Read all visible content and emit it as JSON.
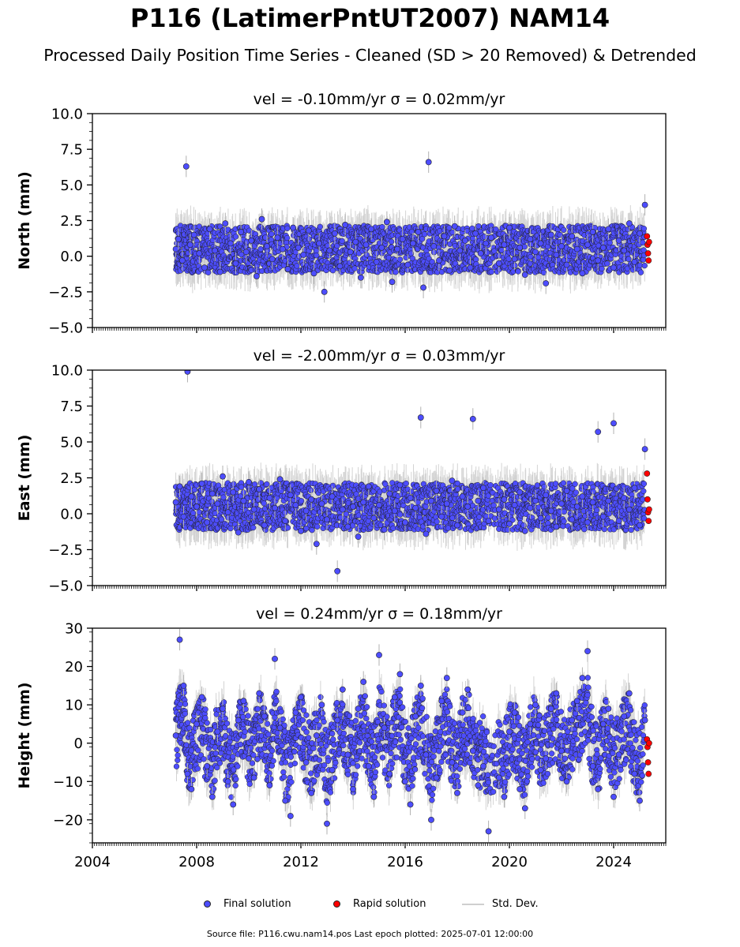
{
  "title": "P116 (LatimerPntUT2007) NAM14",
  "subtitle": "Processed Daily Position Time Series - Cleaned (SD > 20 Removed) & Detrended",
  "legend": {
    "final": "Final solution",
    "rapid": "Rapid solution",
    "stddev": "Std. Dev."
  },
  "footer": "Source file: P116.cwu.nam14.pos  Last epoch plotted: 2025-07-01 12:00:00",
  "colors": {
    "final": "#4d4dff",
    "rapid": "#ff0000",
    "stddev": "#b0b0b0",
    "marker_edge": "#222222"
  },
  "chart_data": [
    {
      "type": "scatter",
      "title": "vel = -0.10mm/yr   σ = 0.02mm/yr",
      "ylabel": "North (mm)",
      "xlim": [
        2004,
        2026
      ],
      "ylim": [
        -5,
        10
      ],
      "yticks": [
        -5.0,
        -2.5,
        0.0,
        2.5,
        5.0,
        7.5,
        10.0
      ],
      "ytick_labels": [
        "−5.0",
        "−2.5",
        "0.0",
        "2.5",
        "5.0",
        "7.5",
        "10.0"
      ],
      "xticks": [
        2004,
        2008,
        2012,
        2016,
        2020,
        2024
      ],
      "xtick_labels": [
        "",
        "",
        "",
        "",
        "",
        ""
      ],
      "series": [
        {
          "name": "Final solution",
          "x": [
            2007.2,
            2007.3,
            2007.45,
            2007.6,
            2007.75,
            2007.9,
            2008.1,
            2008.3,
            2008.5,
            2008.7,
            2008.9,
            2009.1,
            2009.3,
            2009.5,
            2009.7,
            2009.9,
            2010.1,
            2010.3,
            2010.5,
            2010.7,
            2010.9,
            2011.1,
            2011.3,
            2011.5,
            2011.7,
            2011.9,
            2012.1,
            2012.3,
            2012.5,
            2012.7,
            2012.9,
            2013.1,
            2013.3,
            2013.5,
            2013.7,
            2013.9,
            2014.1,
            2014.3,
            2014.5,
            2014.7,
            2014.9,
            2015.1,
            2015.3,
            2015.5,
            2015.7,
            2015.9,
            2016.1,
            2016.3,
            2016.5,
            2016.7,
            2016.9,
            2017.1,
            2017.3,
            2017.5,
            2017.7,
            2017.9,
            2018.1,
            2018.3,
            2018.5,
            2018.7,
            2018.9,
            2019.1,
            2019.3,
            2019.6,
            2019.8,
            2020.0,
            2020.2,
            2020.4,
            2020.6,
            2020.8,
            2021.0,
            2021.2,
            2021.4,
            2021.6,
            2021.8,
            2022.0,
            2022.2,
            2022.4,
            2022.6,
            2022.8,
            2023.0,
            2023.2,
            2023.4,
            2023.6,
            2023.8,
            2024.0,
            2024.2,
            2024.4,
            2024.6,
            2024.8,
            2025.0,
            2025.2
          ],
          "y": [
            0.5,
            1.2,
            -0.3,
            6.3,
            0.8,
            1.5,
            0.2,
            -0.8,
            1.9,
            0.4,
            -1.1,
            2.3,
            0.9,
            -0.5,
            1.7,
            0.3,
            1.1,
            -1.4,
            2.6,
            0.7,
            -0.2,
            1.3,
            0.5,
            -0.9,
            2.0,
            0.6,
            0.1,
            1.8,
            -1.2,
            0.9,
            -2.5,
            0.4,
            1.6,
            -0.7,
            2.2,
            0.3,
            1.0,
            -1.5,
            0.8,
            1.9,
            -0.4,
            0.6,
            2.4,
            -1.8,
            0.5,
            1.2,
            -0.6,
            0.9,
            1.7,
            -2.2,
            6.6,
            0.7,
            -0.3,
            1.4,
            -1.0,
            2.1,
            0.4,
            1.1,
            -0.8,
            1.6,
            0.2,
            0.9,
            1.3,
            -0.5,
            0.8,
            2.0,
            -0.2,
            0.6,
            -1.3,
            1.2,
            0.3,
            0.9,
            -1.9,
            1.5,
            0.1,
            0.7,
            -0.6,
            1.4,
            0.5,
            -1.2,
            0.8,
            1.7,
            -0.3,
            0.6,
            1.9,
            -0.8,
            1.1,
            0.4,
            2.3,
            -0.4,
            1.6,
            3.6
          ]
        },
        {
          "name": "Rapid solution",
          "x": [
            2025.28,
            2025.3,
            2025.32,
            2025.34,
            2025.36
          ],
          "y": [
            1.4,
            0.8,
            0.2,
            -0.3,
            1.0
          ]
        }
      ]
    },
    {
      "type": "scatter",
      "title": "vel = -2.00mm/yr   σ = 0.03mm/yr",
      "ylabel": "East (mm)",
      "xlim": [
        2004,
        2026
      ],
      "ylim": [
        -5,
        10
      ],
      "yticks": [
        -5.0,
        -2.5,
        0.0,
        2.5,
        5.0,
        7.5,
        10.0
      ],
      "ytick_labels": [
        "−5.0",
        "−2.5",
        "0.0",
        "2.5",
        "5.0",
        "7.5",
        "10.0"
      ],
      "xticks": [
        2004,
        2008,
        2012,
        2016,
        2020,
        2024
      ],
      "xtick_labels": [
        "",
        "",
        "",
        "",
        "",
        ""
      ],
      "series": [
        {
          "name": "Final solution",
          "x": [
            2007.2,
            2007.35,
            2007.5,
            2007.65,
            2007.8,
            2008.0,
            2008.2,
            2008.4,
            2008.6,
            2008.8,
            2009.0,
            2009.2,
            2009.4,
            2009.6,
            2009.8,
            2010.0,
            2010.2,
            2010.4,
            2010.6,
            2010.8,
            2011.0,
            2011.2,
            2011.4,
            2011.6,
            2011.8,
            2012.0,
            2012.2,
            2012.4,
            2012.6,
            2012.8,
            2013.0,
            2013.2,
            2013.4,
            2013.6,
            2013.8,
            2014.0,
            2014.2,
            2014.4,
            2014.6,
            2014.8,
            2015.0,
            2015.2,
            2015.4,
            2015.6,
            2015.8,
            2016.0,
            2016.2,
            2016.4,
            2016.6,
            2016.8,
            2017.0,
            2017.2,
            2017.4,
            2017.6,
            2017.8,
            2018.0,
            2018.2,
            2018.4,
            2018.6,
            2018.8,
            2019.0,
            2019.2,
            2019.6,
            2019.8,
            2020.0,
            2020.2,
            2020.4,
            2020.6,
            2020.8,
            2021.0,
            2021.2,
            2021.4,
            2021.6,
            2021.8,
            2022.0,
            2022.2,
            2022.4,
            2022.6,
            2022.8,
            2023.0,
            2023.2,
            2023.4,
            2023.6,
            2023.8,
            2024.0,
            2024.2,
            2024.4,
            2024.6,
            2024.8,
            2025.0,
            2025.2
          ],
          "y": [
            0.8,
            1.9,
            -0.2,
            9.9,
            1.2,
            0.5,
            2.1,
            -0.6,
            1.4,
            0.7,
            2.6,
            0.1,
            1.5,
            -1.3,
            0.9,
            2.2,
            0.3,
            1.7,
            -0.8,
            1.1,
            0.4,
            2.4,
            -0.5,
            1.3,
            0.6,
            -1.2,
            0.2,
            1.0,
            -2.1,
            0.7,
            -0.4,
            1.2,
            -4.0,
            0.3,
            -0.9,
            0.5,
            -1.6,
            0.8,
            1.9,
            -0.3,
            0.6,
            -1.1,
            1.4,
            0.2,
            2.0,
            -0.6,
            1.1,
            0.4,
            6.7,
            -1.4,
            0.9,
            1.6,
            -0.2,
            0.7,
            2.3,
            -0.8,
            1.2,
            0.5,
            6.6,
            0.9,
            1.8,
            -0.5,
            0.3,
            1.0,
            -0.7,
            0.6,
            1.5,
            -1.2,
            0.4,
            0.9,
            -0.3,
            1.3,
            0.2,
            -0.9,
            0.7,
            1.6,
            -0.4,
            0.5,
            1.2,
            -0.6,
            0.8,
            5.7,
            -0.2,
            0.9,
            6.3,
            -0.5,
            1.1,
            0.3,
            1.8,
            -0.8,
            4.5
          ]
        },
        {
          "name": "Rapid solution",
          "x": [
            2025.28,
            2025.3,
            2025.32,
            2025.34,
            2025.36
          ],
          "y": [
            2.8,
            1.0,
            0.1,
            -0.5,
            0.3
          ]
        }
      ]
    },
    {
      "type": "scatter",
      "title": "vel = 0.24mm/yr   σ = 0.18mm/yr",
      "ylabel": "Height (mm)",
      "xlim": [
        2004,
        2026
      ],
      "ylim": [
        -26,
        30
      ],
      "yticks": [
        -20,
        -10,
        0,
        10,
        20,
        30
      ],
      "ytick_labels": [
        "−20",
        "−10",
        "0",
        "10",
        "20",
        "30"
      ],
      "xticks": [
        2004,
        2008,
        2012,
        2016,
        2020,
        2024
      ],
      "xtick_labels": [
        "2004",
        "2008",
        "2012",
        "2016",
        "2020",
        "2024"
      ],
      "series": [
        {
          "name": "Final solution",
          "x": [
            2007.2,
            2007.35,
            2007.5,
            2007.65,
            2007.8,
            2008.0,
            2008.2,
            2008.4,
            2008.6,
            2008.8,
            2009.0,
            2009.2,
            2009.4,
            2009.6,
            2009.8,
            2010.0,
            2010.2,
            2010.4,
            2010.6,
            2010.8,
            2011.0,
            2011.2,
            2011.4,
            2011.6,
            2011.8,
            2012.0,
            2012.2,
            2012.4,
            2012.6,
            2012.8,
            2013.0,
            2013.2,
            2013.4,
            2013.6,
            2013.8,
            2014.0,
            2014.2,
            2014.4,
            2014.6,
            2014.8,
            2015.0,
            2015.2,
            2015.4,
            2015.6,
            2015.8,
            2016.0,
            2016.2,
            2016.4,
            2016.6,
            2016.8,
            2017.0,
            2017.2,
            2017.4,
            2017.6,
            2017.8,
            2018.0,
            2018.2,
            2018.4,
            2018.6,
            2018.8,
            2019.0,
            2019.2,
            2019.6,
            2019.8,
            2020.0,
            2020.2,
            2020.4,
            2020.6,
            2020.8,
            2021.0,
            2021.2,
            2021.4,
            2021.6,
            2021.8,
            2022.0,
            2022.2,
            2022.4,
            2022.6,
            2022.8,
            2023.0,
            2023.2,
            2023.4,
            2023.6,
            2023.8,
            2024.0,
            2024.2,
            2024.4,
            2024.6,
            2024.8,
            2025.0,
            2025.2
          ],
          "y": [
            2,
            27,
            15,
            -8,
            -12,
            5,
            12,
            -6,
            -14,
            3,
            9,
            -10,
            -16,
            6,
            11,
            -4,
            -9,
            13,
            7,
            -11,
            22,
            4,
            -15,
            -19,
            8,
            12,
            -5,
            -13,
            2,
            10,
            -21,
            -7,
            6,
            14,
            -3,
            -12,
            9,
            16,
            -6,
            -14,
            23,
            4,
            -8,
            12,
            18,
            -10,
            -16,
            7,
            15,
            -3,
            -20,
            -9,
            11,
            17,
            -5,
            -13,
            8,
            14,
            -2,
            -11,
            -6,
            -23,
            -9,
            -14,
            3,
            8,
            -12,
            -17,
            5,
            10,
            -7,
            -4,
            9,
            13,
            -2,
            -10,
            6,
            11,
            17,
            24,
            -6,
            -12,
            5,
            9,
            -14,
            -3,
            7,
            13,
            -8,
            -15,
            6
          ]
        },
        {
          "name": "Rapid solution",
          "x": [
            2025.28,
            2025.3,
            2025.32,
            2025.34,
            2025.36
          ],
          "y": [
            1,
            -1,
            -5,
            -8,
            0
          ]
        }
      ]
    }
  ]
}
